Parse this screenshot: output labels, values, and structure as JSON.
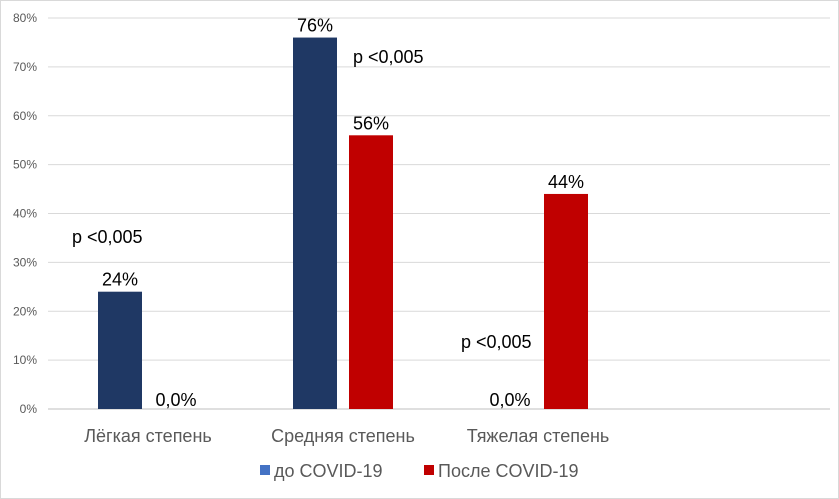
{
  "chart_data": {
    "type": "bar",
    "categories": [
      "Лёгкая степень",
      "Средняя степень",
      "Тяжелая степень"
    ],
    "series": [
      {
        "name": "до COVID-19",
        "values": [
          24,
          76,
          0
        ],
        "labels": [
          "24%",
          "76%",
          "0,0%"
        ],
        "color": "#1f3864"
      },
      {
        "name": "После COVID-19",
        "values": [
          0,
          56,
          44
        ],
        "labels": [
          "0,0%",
          "56%",
          "44%"
        ],
        "color": "#c00000"
      }
    ],
    "ylim": [
      0,
      80
    ],
    "yticks": [
      "0%",
      "10%",
      "20%",
      "30%",
      "40%",
      "50%",
      "60%",
      "70%",
      "80%"
    ],
    "grid": true,
    "legend_position": "bottom",
    "annotations": [
      "p <0,005",
      "p <0,005",
      "p <0,005"
    ],
    "legend_marker_color": "#4472c4"
  }
}
